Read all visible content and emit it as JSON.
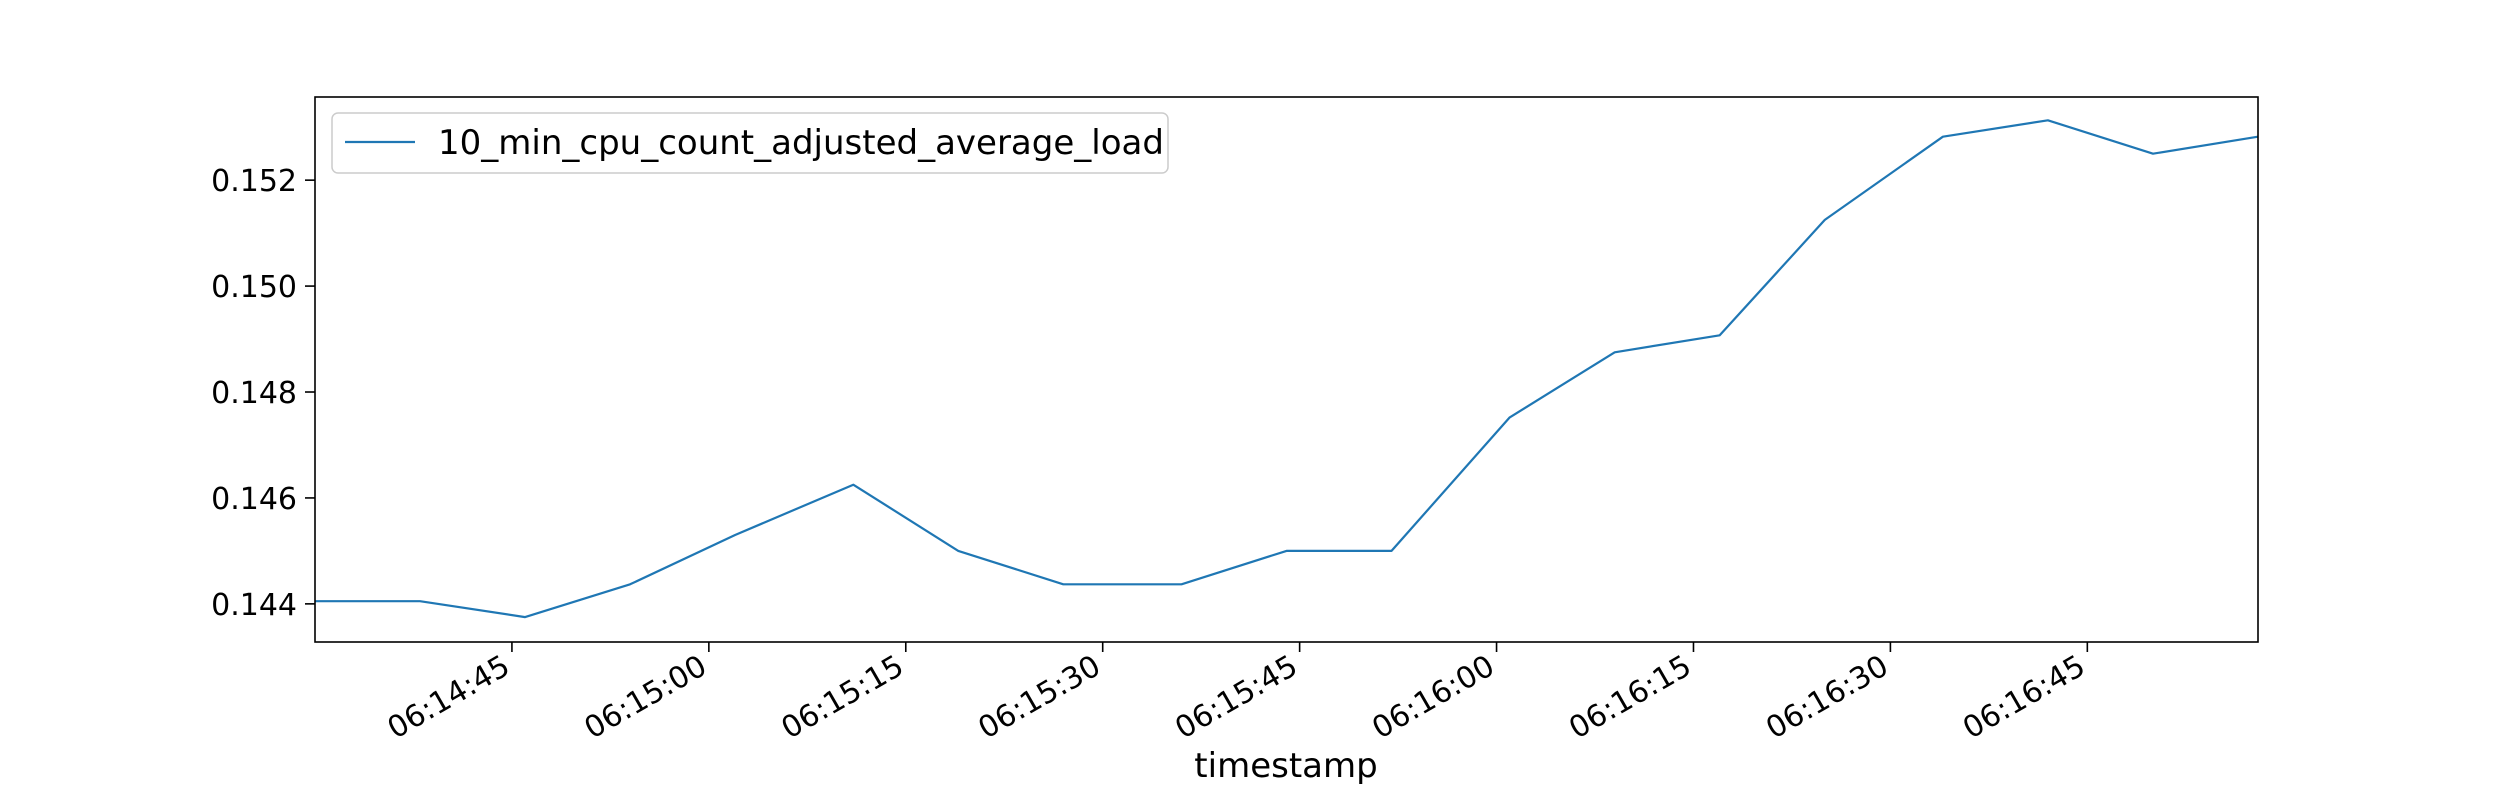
{
  "chart_data": {
    "type": "line",
    "title": "",
    "xlabel": "timestamp",
    "ylabel": "",
    "grid": false,
    "legend_position": "top-left",
    "series": [
      {
        "name": "10_min_cpu_count_adjusted_average_load",
        "color": "#1f77b4",
        "x": [
          "06:14:30",
          "06:14:38",
          "06:14:46",
          "06:14:54",
          "06:15:02",
          "06:15:11",
          "06:15:19",
          "06:15:27",
          "06:15:36",
          "06:15:44",
          "06:15:52",
          "06:16:01",
          "06:16:09",
          "06:16:17",
          "06:16:25",
          "06:16:34",
          "06:16:42",
          "06:16:50",
          "06:16:58"
        ],
        "values": [
          0.14405,
          0.14405,
          0.14375,
          0.14437,
          0.1453,
          0.14625,
          0.145,
          0.14437,
          0.14437,
          0.145,
          0.145,
          0.14752,
          0.14875,
          0.14907,
          0.15125,
          0.15282,
          0.15313,
          0.1525,
          0.15282
        ]
      }
    ],
    "x_range": [
      "06:14:30",
      "06:16:58"
    ],
    "ylim": [
      0.14328,
      0.15357
    ],
    "x_ticks": [
      "06:14:45",
      "06:15:00",
      "06:15:15",
      "06:15:30",
      "06:15:45",
      "06:16:00",
      "06:16:15",
      "06:16:30",
      "06:16:45"
    ],
    "y_ticks": [
      0.144,
      0.146,
      0.148,
      0.15,
      0.152
    ],
    "y_tick_labels": [
      "0.144",
      "0.146",
      "0.148",
      "0.150",
      "0.152"
    ]
  }
}
